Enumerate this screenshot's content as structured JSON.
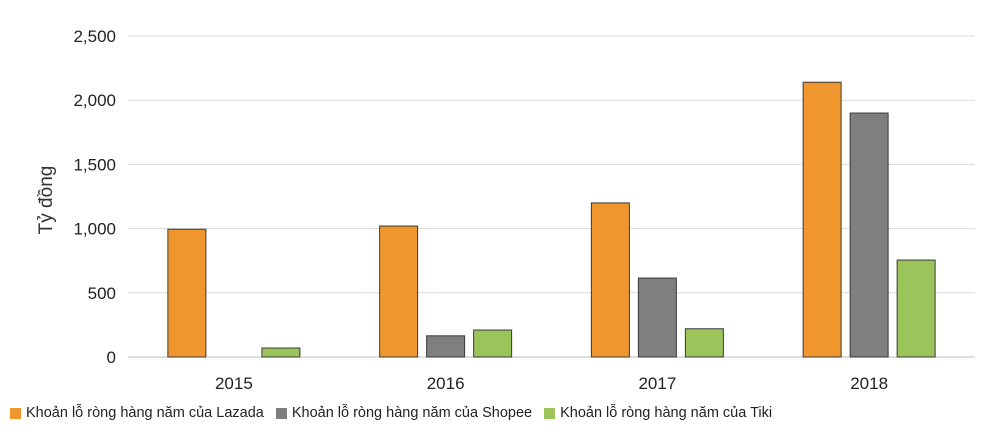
{
  "chart_data": {
    "type": "bar",
    "categories": [
      "2015",
      "2016",
      "2017",
      "2018"
    ],
    "series": [
      {
        "name": "Khoản lỗ ròng hàng năm của Lazada",
        "values": [
          995,
          1020,
          1200,
          2140
        ],
        "color": "#f0962e"
      },
      {
        "name": "Khoản lỗ ròng hàng năm của Shopee",
        "values": [
          0,
          165,
          615,
          1900
        ],
        "color": "#7f7f7f"
      },
      {
        "name": "Khoản lỗ ròng hàng năm của Tiki",
        "values": [
          70,
          210,
          220,
          755
        ],
        "color": "#9bc45a"
      }
    ],
    "ylabel": "Tỷ đồng",
    "xlabel": "",
    "ylim": [
      0,
      2500
    ],
    "yticks": [
      "0",
      "500",
      "1,000",
      "1,500",
      "2,000",
      "2,500"
    ],
    "grid": true,
    "legend_position": "bottom"
  }
}
